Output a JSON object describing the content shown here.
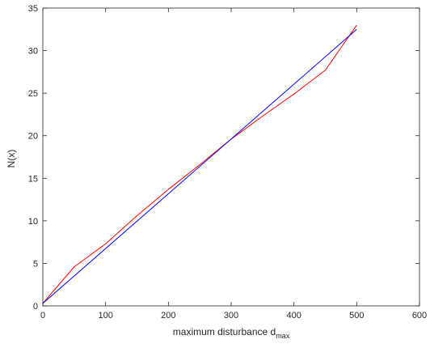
{
  "chart_data": {
    "type": "line",
    "title": "",
    "xlabel": "maximum disturbance d",
    "xlabel_subscript": "max",
    "ylabel": "N(x)",
    "xlim": [
      0,
      600
    ],
    "ylim": [
      0,
      35
    ],
    "xticks": [
      "0",
      "100",
      "200",
      "300",
      "400",
      "500",
      "600"
    ],
    "yticks": [
      "0",
      "5",
      "10",
      "15",
      "20",
      "25",
      "30",
      "35"
    ],
    "grid": false,
    "legend": "none",
    "series": [
      {
        "color": "#ff0000",
        "x": [
          0,
          50,
          100,
          150,
          200,
          250,
          300,
          350,
          400,
          450,
          500
        ],
        "y": [
          0.3,
          4.6,
          7.3,
          10.6,
          13.7,
          16.6,
          19.6,
          22.3,
          24.9,
          27.7,
          33.0
        ]
      },
      {
        "color": "#0000ff",
        "x": [
          0,
          500
        ],
        "y": [
          0.3,
          32.5
        ]
      }
    ]
  }
}
